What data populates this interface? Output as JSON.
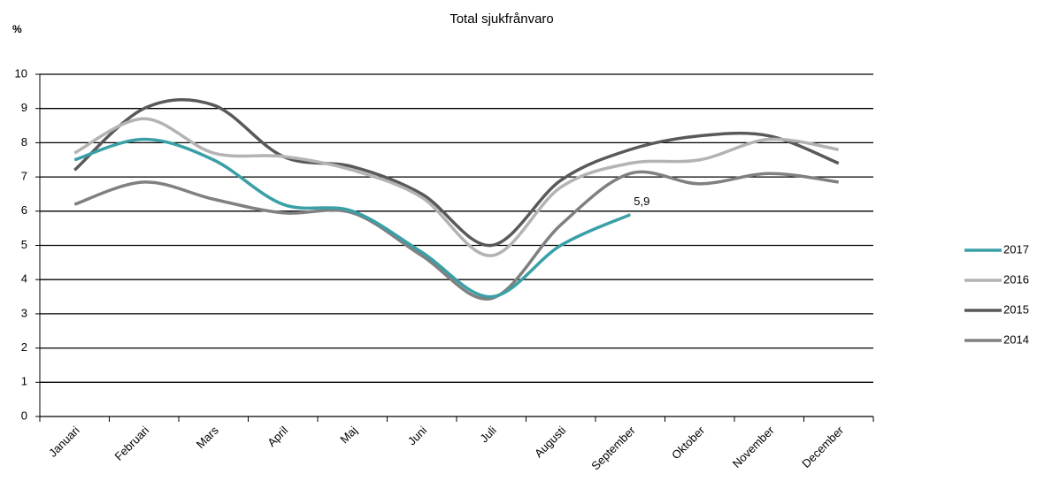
{
  "chart_data": {
    "type": "line",
    "title": "Total sjukfrånvaro",
    "y_label": "%",
    "categories": [
      "Januari",
      "Februari",
      "Mars",
      "April",
      "Maj",
      "Juni",
      "Juli",
      "Augusti",
      "September",
      "Oktober",
      "November",
      "December"
    ],
    "series": [
      {
        "name": "2017",
        "color": "#3aa0a6",
        "values": [
          7.5,
          8.1,
          7.5,
          6.2,
          6.0,
          4.8,
          3.5,
          5.0,
          5.9,
          null,
          null,
          null
        ],
        "value_labels": [
          null,
          null,
          null,
          null,
          null,
          null,
          null,
          null,
          "5,9",
          null,
          null,
          null
        ]
      },
      {
        "name": "2016",
        "color": "#b3b3b3",
        "values": [
          7.7,
          8.7,
          7.7,
          7.6,
          7.2,
          6.4,
          4.7,
          6.7,
          7.4,
          7.5,
          8.1,
          7.8
        ]
      },
      {
        "name": "2015",
        "color": "#595959",
        "values": [
          7.2,
          9.0,
          9.1,
          7.6,
          7.3,
          6.5,
          5.0,
          6.9,
          7.8,
          8.2,
          8.2,
          7.4
        ]
      },
      {
        "name": "2014",
        "color": "#808080",
        "values": [
          6.2,
          6.85,
          6.35,
          5.95,
          5.95,
          4.7,
          3.45,
          5.6,
          7.1,
          6.8,
          7.1,
          6.85
        ]
      }
    ],
    "ylim": [
      0,
      10
    ],
    "yticks": [
      0,
      1,
      2,
      3,
      4,
      5,
      6,
      7,
      8,
      9,
      10
    ],
    "grid": true,
    "smooth": true,
    "legend": "right"
  }
}
